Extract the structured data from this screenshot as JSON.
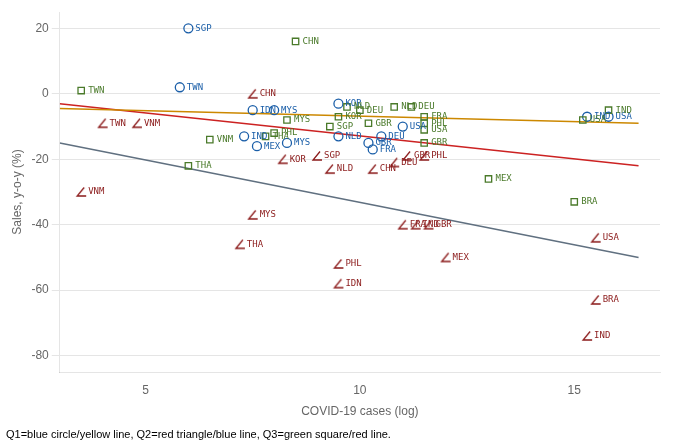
{
  "chart_data": {
    "type": "scatter",
    "xlabel": "COVID-19 cases (log)",
    "ylabel": "Sales, y-o-y (%)",
    "caption": "Q1=blue circle/yellow line, Q2=red triangle/blue line, Q3=green square/red line.",
    "xlim": [
      3.0,
      17.0
    ],
    "ylim": [
      -85,
      25
    ],
    "xticks": [
      5,
      10,
      15
    ],
    "yticks": [
      20,
      0,
      -20,
      -40,
      -60,
      -80
    ],
    "grid": "y",
    "series": [
      {
        "type": "line",
        "color": "#607080",
        "x": [
          3.0,
          16.5
        ],
        "values": [
          -15,
          -50
        ]
      },
      {
        "type": "line",
        "color": "#cc2222",
        "x": [
          3.0,
          16.5
        ],
        "values": [
          -3,
          -22
        ]
      },
      {
        "type": "line",
        "color": "#cc8800",
        "x": [
          3.0,
          16.5
        ],
        "values": [
          -4.5,
          -9
        ]
      },
      {
        "type": "scatter",
        "color": "#1a5ea8",
        "marker": "circle",
        "x": [
          6.0,
          5.8,
          7.5,
          8.0,
          7.3,
          7.6,
          8.3,
          9.5,
          9.5,
          10.2,
          10.5,
          11.0,
          10.3,
          15.3,
          15.8
        ],
        "values": [
          20,
          2,
          -5,
          -5,
          -13,
          -16,
          -15,
          -3,
          -13,
          -15,
          -13,
          -10,
          -17,
          -7,
          -7
        ],
        "labels": [
          "SGP",
          "TWN",
          "IDN",
          "MYS",
          "IND",
          "MEX",
          "MYS",
          "KOR",
          "NLD",
          "GBR",
          "DEU",
          "USA",
          "FRA",
          "IND",
          "USA"
        ]
      },
      {
        "type": "scatter",
        "color": "#8B1A1A",
        "marker": "angle",
        "x": [
          4.0,
          4.8,
          7.5,
          8.2,
          9.0,
          9.3,
          10.3,
          10.8,
          11.1,
          11.5,
          3.5,
          7.5,
          7.2,
          9.5,
          9.5,
          11.0,
          11.3,
          11.6,
          12.0,
          15.5,
          15.5,
          15.3
        ],
        "values": [
          -9,
          -9,
          0,
          -20,
          -19,
          -23,
          -23,
          -21,
          -19,
          -19,
          -30,
          -37,
          -46,
          -52,
          -58,
          -40,
          -40,
          -40,
          -50,
          -44,
          -63,
          -74
        ],
        "labels": [
          "TWN",
          "VNM",
          "CHN",
          "KOR",
          "SGP",
          "NLD",
          "CHN",
          "DEU",
          "GBR",
          "PHL",
          "VNM",
          "MYS",
          "THA",
          "PHL",
          "IDN",
          "FRA",
          "IND",
          "GBR",
          "MEX",
          "USA",
          "BRA",
          "IND"
        ]
      },
      {
        "type": "scatter",
        "color": "#4a7a2a",
        "marker": "square",
        "x": [
          3.5,
          8.5,
          6.5,
          7.8,
          8.0,
          8.3,
          6.0,
          9.5,
          9.3,
          9.7,
          10.0,
          10.8,
          11.2,
          11.5,
          11.5,
          11.5,
          13.0,
          15.0,
          15.2,
          15.8,
          11.5,
          10.2
        ],
        "values": [
          1,
          16,
          -14,
          -13,
          -12,
          -8,
          -22,
          -7,
          -10,
          -4,
          -5,
          -4,
          -4,
          -15,
          -9,
          -7,
          -26,
          -33,
          -8,
          -5,
          -11,
          -9
        ],
        "labels": [
          "TWN",
          "CHN",
          "VNM",
          "THA",
          "PHL",
          "MYS",
          "THA",
          "KOR",
          "SGP",
          "NLD",
          "DEU",
          "NLD",
          "DEU",
          "GBR",
          "PHL",
          "FRA",
          "MEX",
          "BRA",
          "USA",
          "IND",
          "USA",
          "GBR"
        ]
      }
    ]
  }
}
